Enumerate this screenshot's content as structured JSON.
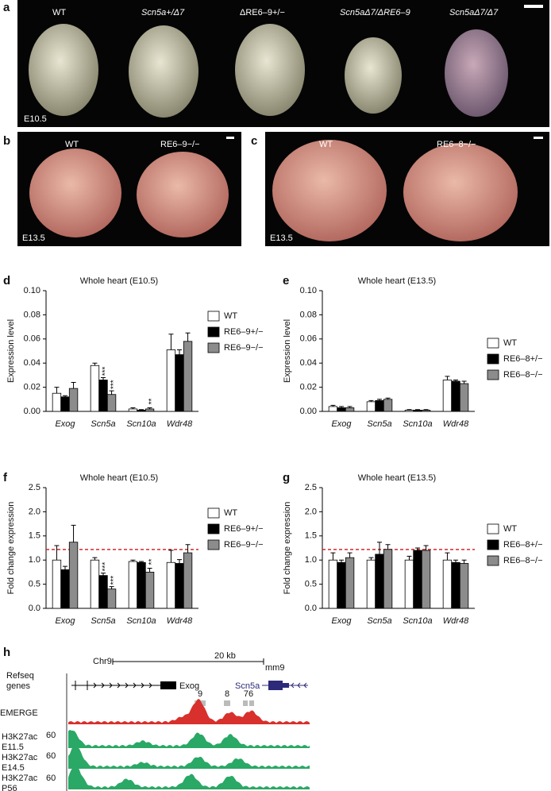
{
  "panels": {
    "a": {
      "letter": "a",
      "stage": "E10.5",
      "labels": [
        "WT",
        "Scn5a+/Δ7",
        "ΔRE6–9+/−",
        "Scn5aΔ7/ΔRE6–9",
        "Scn5aΔ7/Δ7"
      ]
    },
    "b": {
      "letter": "b",
      "stage": "E13.5",
      "labels": [
        "WT",
        "RE6–9−/−"
      ]
    },
    "c": {
      "letter": "c",
      "stage": "E13.5",
      "labels": [
        "WT",
        "RE6–8−/−"
      ]
    },
    "d": {
      "letter": "d"
    },
    "e": {
      "letter": "e"
    },
    "f": {
      "letter": "f"
    },
    "g": {
      "letter": "g"
    },
    "h": {
      "letter": "h",
      "chrom": "Chr9",
      "scale": "20 kb",
      "assembly": "mm9",
      "refseq": "Refseq genes",
      "genes": [
        "Exog",
        "Scn5a"
      ],
      "elements": [
        "9",
        "8",
        "76"
      ],
      "tracks": [
        "EMERGE",
        "H3K27ac E11.5",
        "H3K27ac E14.5",
        "H3K27ac P56"
      ],
      "track_scale": [
        "60",
        "60",
        "60"
      ]
    }
  },
  "chart_data": [
    {
      "type": "bar",
      "title": "Whole heart (E10.5)",
      "y_label": "Expression level",
      "categories": [
        "Exog",
        "Scn5a",
        "Scn10a",
        "Wdr48"
      ],
      "ylim": [
        0,
        0.1
      ],
      "yticks": [
        {
          "value": 0,
          "label": "0.00"
        },
        0.02,
        0.04,
        0.06,
        0.08,
        {
          "value": 0.1,
          "label": "0.10"
        }
      ],
      "series": [
        {
          "name": "WT",
          "color": "#ffffff",
          "values": [
            0.015,
            0.038,
            0.002,
            0.051
          ],
          "errors": [
            0.005,
            0.002,
            0.001,
            0.013
          ],
          "significance": [
            null,
            null,
            null,
            null
          ]
        },
        {
          "name": "RE6–9+/−",
          "color": "#000000",
          "values": [
            0.012,
            0.026,
            0.001,
            0.047
          ],
          "errors": [
            0.001,
            0.002,
            0.0005,
            0.004
          ],
          "significance": [
            null,
            "***",
            null,
            null
          ]
        },
        {
          "name": "RE6–9−/−",
          "color": "#8c8c8c",
          "values": [
            0.019,
            0.014,
            0.002,
            0.058
          ],
          "errors": [
            0.005,
            0.003,
            0.001,
            0.007
          ],
          "significance": [
            null,
            "***",
            "**",
            null
          ]
        }
      ]
    },
    {
      "type": "bar",
      "title": "Whole heart (E13.5)",
      "y_label": "Expression level",
      "categories": [
        "Exog",
        "Scn5a",
        "Scn10a",
        "Wdr48"
      ],
      "ylim": [
        0,
        0.1
      ],
      "yticks": [
        {
          "value": 0,
          "label": "0.00"
        },
        0.02,
        0.04,
        0.06,
        0.08,
        {
          "value": 0.1,
          "label": "0.10"
        }
      ],
      "series": [
        {
          "name": "WT",
          "color": "#ffffff",
          "values": [
            0.004,
            0.008,
            0.001,
            0.026
          ],
          "errors": [
            0.001,
            0.001,
            0.0005,
            0.003
          ],
          "significance": [
            null,
            null,
            null,
            null
          ]
        },
        {
          "name": "RE6–8+/−",
          "color": "#000000",
          "values": [
            0.003,
            0.009,
            0.001,
            0.025
          ],
          "errors": [
            0.001,
            0.001,
            0.0005,
            0.001
          ],
          "significance": [
            null,
            null,
            null,
            null
          ]
        },
        {
          "name": "RE6–8−/−",
          "color": "#8c8c8c",
          "values": [
            0.003,
            0.01,
            0.001,
            0.023
          ],
          "errors": [
            0.001,
            0.001,
            0.0005,
            0.002
          ],
          "significance": [
            null,
            null,
            null,
            null
          ]
        }
      ]
    },
    {
      "type": "bar",
      "title": "Whole heart (E10.5)",
      "y_label": "Fold change expression",
      "categories": [
        "Exog",
        "Scn5a",
        "Scn10a",
        "Wdr48"
      ],
      "reference_line": 1.22,
      "ylim": [
        0,
        2.5
      ],
      "yticks": [
        {
          "value": 0,
          "label": "0.0"
        },
        0.5,
        {
          "value": 1,
          "label": "1.0"
        },
        1.5,
        {
          "value": 2,
          "label": "2.0"
        },
        2.5
      ],
      "series": [
        {
          "name": "WT",
          "color": "#ffffff",
          "values": [
            1.0,
            1.0,
            0.97,
            0.95
          ],
          "errors": [
            0.3,
            0.05,
            0.03,
            0.25
          ],
          "significance": [
            null,
            null,
            null,
            null
          ]
        },
        {
          "name": "RE6–9+/−",
          "color": "#000000",
          "values": [
            0.8,
            0.68,
            0.95,
            0.93
          ],
          "errors": [
            0.07,
            0.05,
            0.02,
            0.08
          ],
          "significance": [
            null,
            "***",
            null,
            null
          ]
        },
        {
          "name": "RE6–9−/−",
          "color": "#8c8c8c",
          "values": [
            1.37,
            0.4,
            0.75,
            1.15
          ],
          "errors": [
            0.35,
            0.05,
            0.08,
            0.17
          ],
          "significance": [
            null,
            "***",
            "**",
            null
          ]
        }
      ]
    },
    {
      "type": "bar",
      "title": "Whole heart (E13.5)",
      "y_label": "Fold change expression",
      "categories": [
        "Exog",
        "Scn5a",
        "Scn10a",
        "Wdr48"
      ],
      "reference_line": 1.22,
      "ylim": [
        0,
        2.5
      ],
      "yticks": [
        {
          "value": 0,
          "label": "0.0"
        },
        0.5,
        {
          "value": 1,
          "label": "1.0"
        },
        1.5,
        {
          "value": 2,
          "label": "2.0"
        },
        2.5
      ],
      "series": [
        {
          "name": "WT",
          "color": "#ffffff",
          "values": [
            1.0,
            1.0,
            1.0,
            1.0
          ],
          "errors": [
            0.15,
            0.05,
            0.08,
            0.15
          ],
          "significance": [
            null,
            null,
            null,
            null
          ]
        },
        {
          "name": "RE6–8+/−",
          "color": "#000000",
          "values": [
            0.95,
            1.12,
            1.2,
            0.95
          ],
          "errors": [
            0.05,
            0.25,
            0.05,
            0.05
          ],
          "significance": [
            null,
            null,
            null,
            null
          ]
        },
        {
          "name": "RE6–8−/−",
          "color": "#8c8c8c",
          "values": [
            1.05,
            1.22,
            1.2,
            0.93
          ],
          "errors": [
            0.1,
            0.1,
            0.1,
            0.07
          ],
          "significance": [
            null,
            null,
            null,
            null
          ]
        }
      ]
    }
  ]
}
